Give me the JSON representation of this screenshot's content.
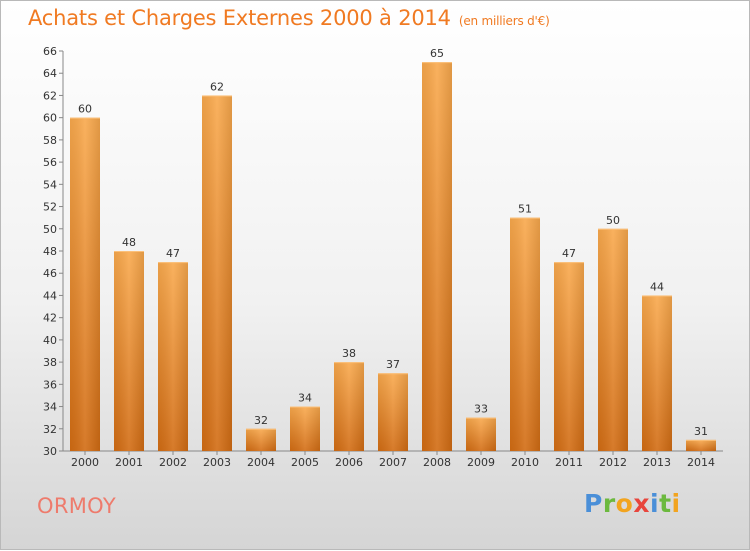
{
  "header": {
    "title": "Achats et Charges Externes 2000 à 2014",
    "unit": "(en milliers d'€)"
  },
  "commune": "ORMOY",
  "logo": {
    "letters": [
      {
        "ch": "P",
        "color": "#4a8fd8"
      },
      {
        "ch": "r",
        "color": "#6cb93e"
      },
      {
        "ch": "o",
        "color": "#f2a41f"
      },
      {
        "ch": "x",
        "color": "#e8453c"
      },
      {
        "ch": "i",
        "color": "#4a8fd8"
      },
      {
        "ch": "t",
        "color": "#6cb93e"
      },
      {
        "ch": "i",
        "color": "#f2a41f"
      }
    ]
  },
  "chart_data": {
    "type": "bar",
    "categories": [
      "2000",
      "2001",
      "2002",
      "2003",
      "2004",
      "2005",
      "2006",
      "2007",
      "2008",
      "2009",
      "2010",
      "2011",
      "2012",
      "2013",
      "2014"
    ],
    "values": [
      60,
      48,
      47,
      62,
      32,
      34,
      38,
      37,
      65,
      33,
      51,
      47,
      50,
      44,
      31
    ],
    "title": "Achats et Charges Externes 2000 à 2014",
    "ylim": [
      30,
      66
    ],
    "yticks": [
      30,
      32,
      34,
      36,
      38,
      40,
      42,
      44,
      46,
      48,
      50,
      52,
      54,
      56,
      58,
      60,
      62,
      64,
      66
    ],
    "grid": false,
    "colors": {
      "bar_light": "#f8a84e",
      "bar_dark": "#d46d12",
      "axis": "#888888"
    }
  }
}
